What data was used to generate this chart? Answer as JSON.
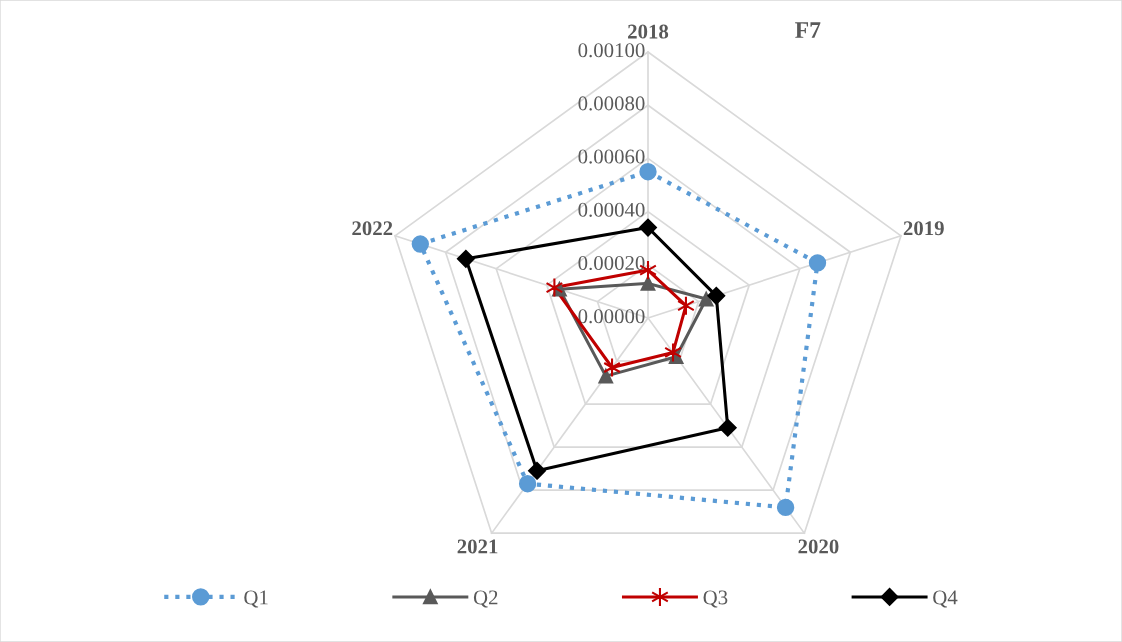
{
  "chart_data": {
    "type": "radar",
    "title": "F7",
    "categories": [
      "2018",
      "2019",
      "2020",
      "2021",
      "2022"
    ],
    "ylim": [
      0,
      0.001
    ],
    "yticks": [
      {
        "value": 0,
        "label": "0.00000"
      },
      {
        "value": 0.0002,
        "label": "0.00020"
      },
      {
        "value": 0.0004,
        "label": "0.00040"
      },
      {
        "value": 0.0006,
        "label": "0.00060"
      },
      {
        "value": 0.0008,
        "label": "0.00080"
      },
      {
        "value": 0.001,
        "label": "0.00100"
      }
    ],
    "grid": true,
    "legend": "bottom",
    "series": [
      {
        "name": "Q1",
        "color": "#5b9bd5",
        "marker": "circle",
        "line_style": "dotted",
        "values": [
          0.00055,
          0.00067,
          0.00088,
          0.00077,
          0.0009
        ]
      },
      {
        "name": "Q2",
        "color": "#595959",
        "marker": "triangle",
        "line_style": "solid",
        "values": [
          0.00013,
          0.00023,
          0.00018,
          0.00027,
          0.00035
        ]
      },
      {
        "name": "Q3",
        "color": "#c00000",
        "marker": "star",
        "line_style": "solid",
        "values": [
          0.00018,
          0.00015,
          0.00016,
          0.00023,
          0.00037
        ]
      },
      {
        "name": "Q4",
        "color": "#000000",
        "marker": "diamond",
        "line_style": "solid",
        "values": [
          0.00034,
          0.00027,
          0.00051,
          0.00071,
          0.00072
        ]
      }
    ]
  }
}
